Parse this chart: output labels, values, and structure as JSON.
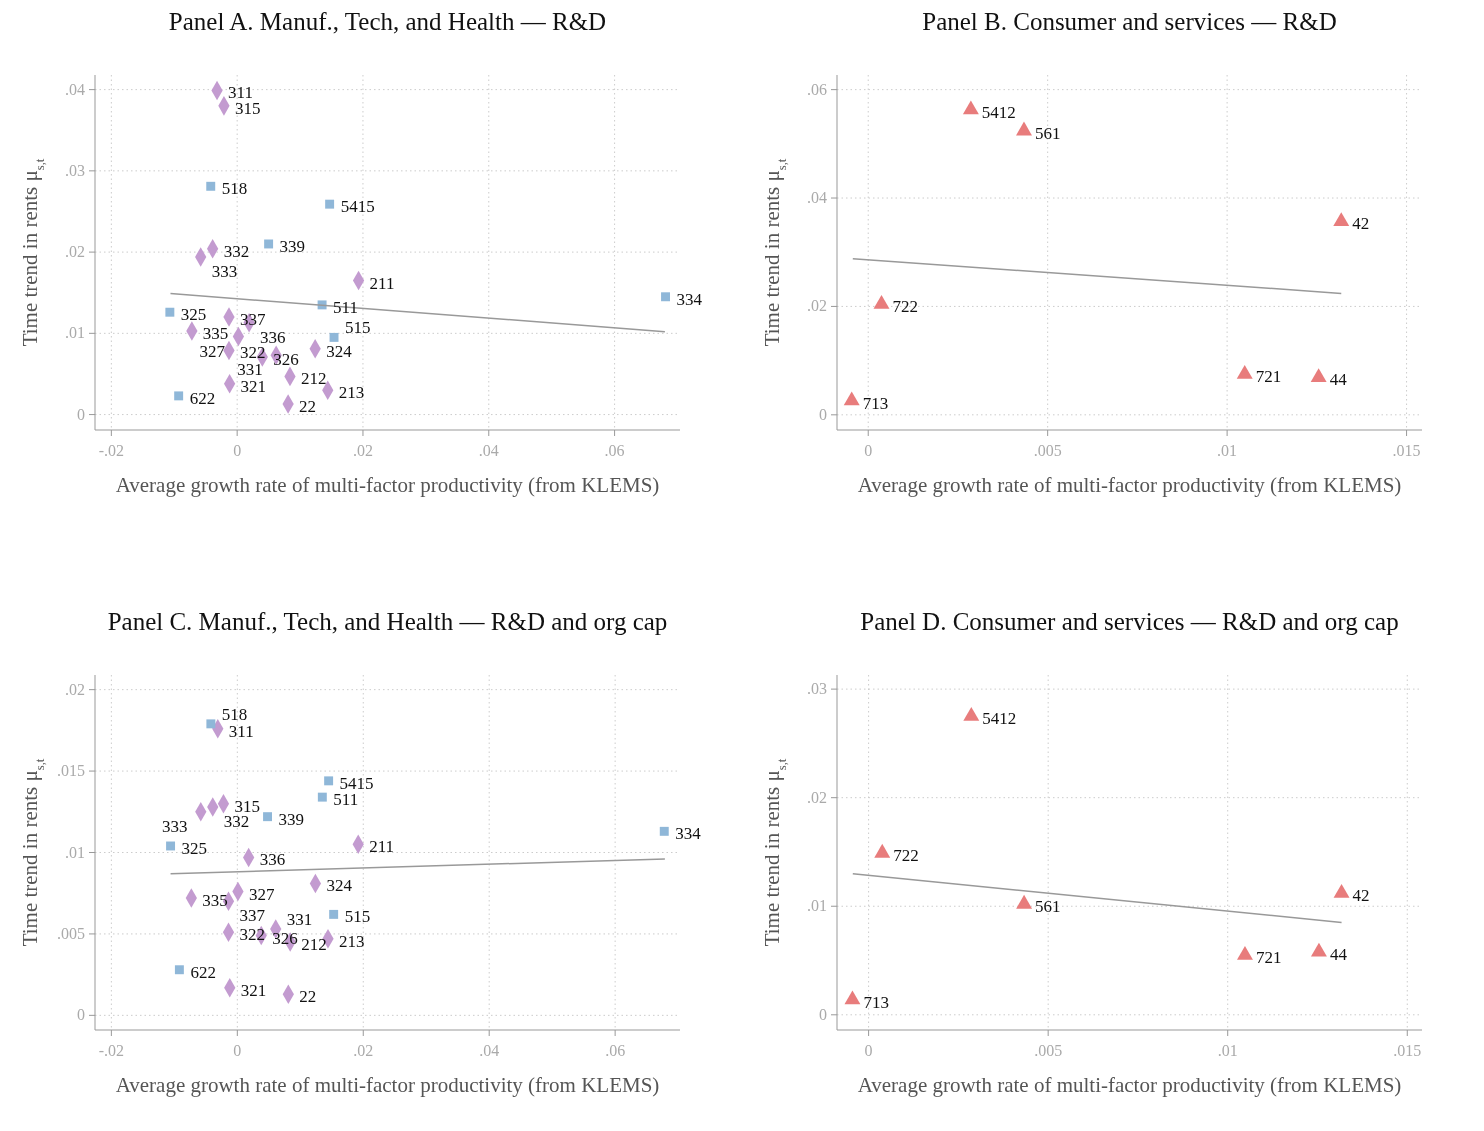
{
  "chart_data": [
    {
      "type": "scatter",
      "title": "Panel A. Manuf., Tech, and Health — R&D",
      "xlabel": "Average growth rate of multi-factor productivity (from KLEMS)",
      "ylabel": "Time trend in rents μ$_{s,t}$",
      "grid": true,
      "xlim": [
        -0.0226,
        0.0704
      ],
      "ylim": [
        -0.0019,
        0.0418
      ],
      "xticks": [
        {
          "value": -0.02,
          "label": "-.02"
        },
        {
          "value": 0,
          "label": "0"
        },
        {
          "value": 0.02,
          "label": ".02"
        },
        {
          "value": 0.04,
          "label": ".04"
        },
        {
          "value": 0.06,
          "label": ".06"
        }
      ],
      "yticks": [
        {
          "value": 0,
          "label": "0"
        },
        {
          "value": 0.01,
          "label": ".01"
        },
        {
          "value": 0.02,
          "label": ".02"
        },
        {
          "value": 0.03,
          "label": ".03"
        },
        {
          "value": 0.04,
          "label": ".04"
        }
      ],
      "series": [
        {
          "type": "scatter",
          "marker": "diamond",
          "color": "#c39bd0",
          "x": [
            -0.0032,
            -0.0021,
            -0.0039,
            -0.0058,
            0.0193,
            -0.0013,
            0.0019,
            -0.0072,
            0.0002,
            -0.0013,
            0.004,
            0.0062,
            0.0124,
            0.0084,
            -0.0012,
            0.0144,
            0.0081
          ],
          "values": [
            0.0399,
            0.038,
            0.0204,
            0.0194,
            0.0165,
            0.012,
            0.0113,
            0.0103,
            0.0096,
            0.0079,
            0.0071,
            0.0073,
            0.0081,
            0.0047,
            0.0038,
            0.003,
            0.0013
          ]
        },
        {
          "type": "scatter",
          "marker": "square",
          "color": "#8fb7d8",
          "x": [
            -0.0042,
            0.0147,
            0.005,
            0.0135,
            0.0681,
            -0.0107,
            0.0154,
            -0.0093
          ],
          "values": [
            0.0281,
            0.0259,
            0.021,
            0.0135,
            0.0145,
            0.0126,
            0.0095,
            0.0023
          ]
        },
        {
          "type": "line",
          "marker": "none",
          "color": "#999999",
          "x": [
            -0.0106,
            0.068
          ],
          "values": [
            0.0149,
            0.0102
          ]
        }
      ],
      "annotations": [
        {
          "text": "311",
          "x": -0.0032,
          "y": 0.0399
        },
        {
          "text": "315",
          "x": -0.0021,
          "y": 0.038
        },
        {
          "text": "332",
          "x": -0.0039,
          "y": 0.0204
        },
        {
          "text": "333",
          "x": -0.0058,
          "y": 0.0194
        },
        {
          "text": "211",
          "x": 0.0193,
          "y": 0.0165
        },
        {
          "text": "337",
          "x": -0.0013,
          "y": 0.012
        },
        {
          "text": "336",
          "x": 0.0019,
          "y": 0.0113
        },
        {
          "text": "335",
          "x": -0.0072,
          "y": 0.0103
        },
        {
          "text": "327",
          "x": 0.0002,
          "y": 0.0096
        },
        {
          "text": "322",
          "x": -0.0013,
          "y": 0.0079
        },
        {
          "text": "326",
          "x": 0.004,
          "y": 0.0071
        },
        {
          "text": "331",
          "x": 0.0062,
          "y": 0.0073
        },
        {
          "text": "324",
          "x": 0.0124,
          "y": 0.0081
        },
        {
          "text": "212",
          "x": 0.0084,
          "y": 0.0047
        },
        {
          "text": "321",
          "x": -0.0012,
          "y": 0.0038
        },
        {
          "text": "213",
          "x": 0.0144,
          "y": 0.003
        },
        {
          "text": "22",
          "x": 0.0081,
          "y": 0.0013
        },
        {
          "text": "518",
          "x": -0.0042,
          "y": 0.0281
        },
        {
          "text": "5415",
          "x": 0.0147,
          "y": 0.0259
        },
        {
          "text": "339",
          "x": 0.005,
          "y": 0.021
        },
        {
          "text": "511",
          "x": 0.0135,
          "y": 0.0135
        },
        {
          "text": "334",
          "x": 0.0681,
          "y": 0.0145
        },
        {
          "text": "325",
          "x": -0.0107,
          "y": 0.0126
        },
        {
          "text": "515",
          "x": 0.0154,
          "y": 0.0095
        },
        {
          "text": "622",
          "x": -0.0093,
          "y": 0.0023
        }
      ]
    },
    {
      "type": "scatter",
      "title": "Panel B. Consumer and services — R&D",
      "xlabel": "Average growth rate of multi-factor productivity (from KLEMS)",
      "ylabel": "Time trend in rents μ$_{s,t}$",
      "grid": true,
      "xlim": [
        -0.00087,
        0.01543
      ],
      "ylim": [
        -0.0028,
        0.0627
      ],
      "xticks": [
        {
          "value": 0,
          "label": "0"
        },
        {
          "value": 0.005,
          "label": ".005"
        },
        {
          "value": 0.01,
          "label": ".01"
        },
        {
          "value": 0.015,
          "label": ".015"
        }
      ],
      "yticks": [
        {
          "value": 0,
          "label": "0"
        },
        {
          "value": 0.02,
          "label": ".02"
        },
        {
          "value": 0.04,
          "label": ".04"
        },
        {
          "value": 0.06,
          "label": ".06"
        }
      ],
      "series": [
        {
          "type": "scatter",
          "marker": "triangle",
          "color": "#e87c7c",
          "x": [
            0.00286,
            0.00434,
            0.01318,
            0.00037,
            0.01049,
            0.01255,
            -0.00046
          ],
          "values": [
            0.0563,
            0.0524,
            0.0357,
            0.0204,
            0.0075,
            0.0069,
            0.0026
          ]
        },
        {
          "type": "line",
          "marker": "none",
          "color": "#999999",
          "x": [
            -0.00043,
            0.01318
          ],
          "values": [
            0.0288,
            0.0224
          ]
        }
      ],
      "annotations": [
        {
          "text": "5412",
          "x": 0.00286,
          "y": 0.0563
        },
        {
          "text": "561",
          "x": 0.00434,
          "y": 0.0524
        },
        {
          "text": "42",
          "x": 0.01318,
          "y": 0.0357
        },
        {
          "text": "722",
          "x": 0.00037,
          "y": 0.0204
        },
        {
          "text": "721",
          "x": 0.01049,
          "y": 0.0075
        },
        {
          "text": "44",
          "x": 0.01255,
          "y": 0.0069
        },
        {
          "text": "713",
          "x": -0.00046,
          "y": 0.0026
        }
      ]
    },
    {
      "type": "scatter",
      "title": "Panel C. Manuf., Tech, and Health — R&D and org cap",
      "xlabel": "Average growth rate of multi-factor productivity (from KLEMS)",
      "ylabel": "Time trend in rents μ$_{s,t}$",
      "grid": true,
      "xlim": [
        -0.0226,
        0.0703
      ],
      "ylim": [
        -0.0009,
        0.0209
      ],
      "xticks": [
        {
          "value": -0.02,
          "label": "-.02"
        },
        {
          "value": 0,
          "label": "0"
        },
        {
          "value": 0.02,
          "label": ".02"
        },
        {
          "value": 0.04,
          "label": ".04"
        },
        {
          "value": 0.06,
          "label": ".06"
        }
      ],
      "yticks": [
        {
          "value": 0,
          "label": "0"
        },
        {
          "value": 0.005,
          "label": ".005"
        },
        {
          "value": 0.01,
          "label": ".01"
        },
        {
          "value": 0.015,
          "label": ".015"
        },
        {
          "value": 0.02,
          "label": ".02"
        }
      ],
      "series": [
        {
          "type": "scatter",
          "marker": "diamond",
          "color": "#c39bd0",
          "x": [
            -0.0031,
            -0.0022,
            -0.0039,
            -0.0058,
            0.0192,
            0.0018,
            0.0124,
            0.0001,
            -0.0073,
            -0.0014,
            -0.0014,
            0.0038,
            0.0061,
            0.0084,
            0.0144,
            -0.0012,
            0.0081
          ],
          "values": [
            0.0176,
            0.013,
            0.0128,
            0.0125,
            0.0105,
            0.0097,
            0.0081,
            0.0076,
            0.0072,
            0.007,
            0.0051,
            0.0049,
            0.0053,
            0.0045,
            0.0047,
            0.0017,
            0.0013
          ]
        },
        {
          "type": "scatter",
          "marker": "square",
          "color": "#8fb7d8",
          "x": [
            -0.0042,
            0.0145,
            0.0135,
            0.0048,
            -0.0106,
            0.0678,
            0.0153,
            -0.0092
          ],
          "values": [
            0.0179,
            0.0144,
            0.0134,
            0.0122,
            0.0104,
            0.0113,
            0.0062,
            0.0028
          ]
        },
        {
          "type": "line",
          "marker": "none",
          "color": "#999999",
          "x": [
            -0.0106,
            0.0679
          ],
          "values": [
            0.0087,
            0.0096
          ]
        }
      ],
      "annotations": [
        {
          "text": "311",
          "x": -0.0031,
          "y": 0.0176
        },
        {
          "text": "315",
          "x": -0.0022,
          "y": 0.013
        },
        {
          "text": "332",
          "x": -0.0039,
          "y": 0.0128
        },
        {
          "text": "333",
          "x": -0.0058,
          "y": 0.0125
        },
        {
          "text": "211",
          "x": 0.0192,
          "y": 0.0105
        },
        {
          "text": "336",
          "x": 0.0018,
          "y": 0.0097
        },
        {
          "text": "324",
          "x": 0.0124,
          "y": 0.0081
        },
        {
          "text": "327",
          "x": 0.0001,
          "y": 0.0076
        },
        {
          "text": "335",
          "x": -0.0073,
          "y": 0.0072
        },
        {
          "text": "337",
          "x": -0.0014,
          "y": 0.007
        },
        {
          "text": "322",
          "x": -0.0014,
          "y": 0.0051
        },
        {
          "text": "326",
          "x": 0.0038,
          "y": 0.0049
        },
        {
          "text": "331",
          "x": 0.0061,
          "y": 0.0053
        },
        {
          "text": "212",
          "x": 0.0084,
          "y": 0.0045
        },
        {
          "text": "213",
          "x": 0.0144,
          "y": 0.0047
        },
        {
          "text": "321",
          "x": -0.0012,
          "y": 0.0017
        },
        {
          "text": "22",
          "x": 0.0081,
          "y": 0.0013
        },
        {
          "text": "518",
          "x": -0.0042,
          "y": 0.0179
        },
        {
          "text": "5415",
          "x": 0.0145,
          "y": 0.0144
        },
        {
          "text": "511",
          "x": 0.0135,
          "y": 0.0134
        },
        {
          "text": "339",
          "x": 0.0048,
          "y": 0.0122
        },
        {
          "text": "325",
          "x": -0.0106,
          "y": 0.0104
        },
        {
          "text": "334",
          "x": 0.0678,
          "y": 0.0113
        },
        {
          "text": "515",
          "x": 0.0153,
          "y": 0.0062
        },
        {
          "text": "622",
          "x": -0.0092,
          "y": 0.0028
        }
      ]
    },
    {
      "type": "scatter",
      "title": "Panel D. Consumer and services — R&D and org cap",
      "xlabel": "Average growth rate of multi-factor productivity (from KLEMS)",
      "ylabel": "Time trend in rents μ$_{s,t}$",
      "grid": true,
      "xlim": [
        -0.00088,
        0.01541
      ],
      "ylim": [
        -0.0014,
        0.0313
      ],
      "xticks": [
        {
          "value": 0,
          "label": "0"
        },
        {
          "value": 0.005,
          "label": ".005"
        },
        {
          "value": 0.01,
          "label": ".01"
        },
        {
          "value": 0.015,
          "label": ".015"
        }
      ],
      "yticks": [
        {
          "value": 0,
          "label": "0"
        },
        {
          "value": 0.01,
          "label": ".01"
        },
        {
          "value": 0.02,
          "label": ".02"
        },
        {
          "value": 0.03,
          "label": ".03"
        }
      ],
      "series": [
        {
          "type": "scatter",
          "marker": "triangle",
          "color": "#e87c7c",
          "x": [
            0.00286,
            0.00038,
            0.00433,
            0.01317,
            0.01048,
            0.01254,
            -0.00045
          ],
          "values": [
            0.0275,
            0.0149,
            0.0102,
            0.0112,
            0.0055,
            0.0058,
            0.0014
          ]
        },
        {
          "type": "line",
          "marker": "none",
          "color": "#999999",
          "x": [
            -0.00044,
            0.01317
          ],
          "values": [
            0.013,
            0.0085
          ]
        }
      ],
      "annotations": [
        {
          "text": "5412",
          "x": 0.00286,
          "y": 0.0275
        },
        {
          "text": "722",
          "x": 0.00038,
          "y": 0.0149
        },
        {
          "text": "561",
          "x": 0.00433,
          "y": 0.0102
        },
        {
          "text": "42",
          "x": 0.01317,
          "y": 0.0112
        },
        {
          "text": "721",
          "x": 0.01048,
          "y": 0.0055
        },
        {
          "text": "44",
          "x": 0.01254,
          "y": 0.0058
        },
        {
          "text": "713",
          "x": -0.00045,
          "y": 0.0014
        }
      ]
    }
  ]
}
